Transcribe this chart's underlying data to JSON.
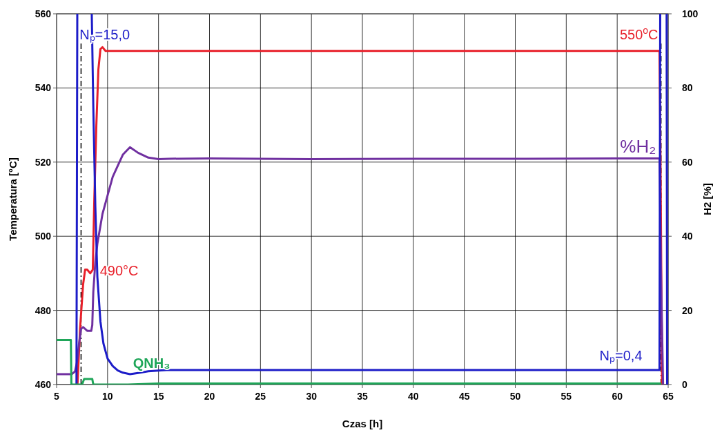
{
  "chart_data": {
    "type": "line",
    "xlabel": "Czas [h]",
    "ylabel": "Temperatura [°C]",
    "y2label": "H2 [%]",
    "xlim": [
      5,
      65
    ],
    "xticks": [
      5,
      10,
      15,
      20,
      25,
      30,
      35,
      40,
      45,
      50,
      55,
      60,
      65
    ],
    "ylim": [
      460,
      560
    ],
    "yticks": [
      460,
      480,
      500,
      520,
      540,
      560
    ],
    "y2lim": [
      0,
      100
    ],
    "y2ticks": [
      0,
      20,
      40,
      60,
      80,
      100
    ],
    "grid": true,
    "marker": "none",
    "line_style": "solid",
    "series": [
      {
        "color": "#e8202a",
        "x": [
          7.05,
          7.3,
          7.6,
          7.8,
          8.0,
          8.3,
          8.55,
          8.7,
          8.9,
          9.1,
          9.3,
          9.5,
          9.8,
          10.5,
          15,
          20,
          30,
          40,
          50,
          60,
          64.15,
          64.25,
          64.4
        ],
        "values": [
          460,
          475,
          487,
          491,
          491,
          490,
          491,
          510,
          530,
          545,
          550.5,
          551,
          550,
          550,
          550,
          550,
          550,
          550,
          550,
          550,
          550,
          520,
          460
        ]
      },
      {
        "name": "%H₂",
        "axis": "y2",
        "color": "#7030a0",
        "x": [
          5,
          6.5,
          6.8,
          7.0,
          7.2,
          7.4,
          7.6,
          8.0,
          8.4,
          8.5,
          8.6,
          8.8,
          9.0,
          9.5,
          10,
          10.5,
          11,
          11.5,
          12.2,
          13,
          14,
          15,
          16,
          20,
          30,
          40,
          50,
          60,
          64.15,
          64.3,
          64.5
        ],
        "values": [
          2.8,
          2.8,
          3.5,
          6,
          11,
          15,
          15.5,
          14.5,
          14.5,
          16,
          25,
          33,
          38,
          46,
          51,
          56,
          59,
          62,
          64,
          62.5,
          61.2,
          60.8,
          60.9,
          61,
          60.8,
          60.9,
          60.9,
          61,
          61,
          30,
          0
        ]
      },
      {
        "axis": "y2",
        "color": "#1c1cc8",
        "x": [
          6.95,
          7.03,
          7.06,
          8.45,
          8.6,
          8.8,
          9.0,
          9.3,
          9.6,
          10,
          10.5,
          11,
          11.5,
          12.2,
          13,
          14,
          15.8,
          20,
          30,
          40,
          50,
          60,
          64.15,
          64.22,
          64.26,
          64.85,
          64.9
        ],
        "values": [
          0,
          100,
          null,
          100,
          75,
          48,
          29,
          17,
          11,
          7,
          5,
          3.8,
          3.2,
          2.8,
          3.1,
          3.6,
          3.9,
          3.9,
          3.9,
          3.9,
          3.9,
          3.9,
          3.9,
          100,
          null,
          100,
          0
        ]
      },
      {
        "name": "QNH₃",
        "axis": "y2",
        "color": "#1fa659",
        "x": [
          5,
          6.4,
          6.45,
          7.5,
          7.7,
          8.5,
          8.6,
          12,
          15,
          20,
          30,
          40,
          50,
          60,
          64.2,
          64.3
        ],
        "values": [
          12,
          12,
          0,
          0,
          1.5,
          1.5,
          0,
          0,
          0.3,
          0.3,
          0.3,
          0.3,
          0.3,
          0.3,
          0.3,
          0
        ]
      }
    ],
    "ref_lines": [
      {
        "axis": "x",
        "value": 7.4,
        "color": "#000000",
        "line_style": "dashed"
      },
      {
        "axis": "x",
        "value": 64.3,
        "color": "#000000",
        "line_style": "dashed"
      }
    ],
    "annotations": [
      "Nₚ=15,0",
      "490°C",
      "550$^{o}$C",
      "Nₚ=0,4"
    ]
  }
}
